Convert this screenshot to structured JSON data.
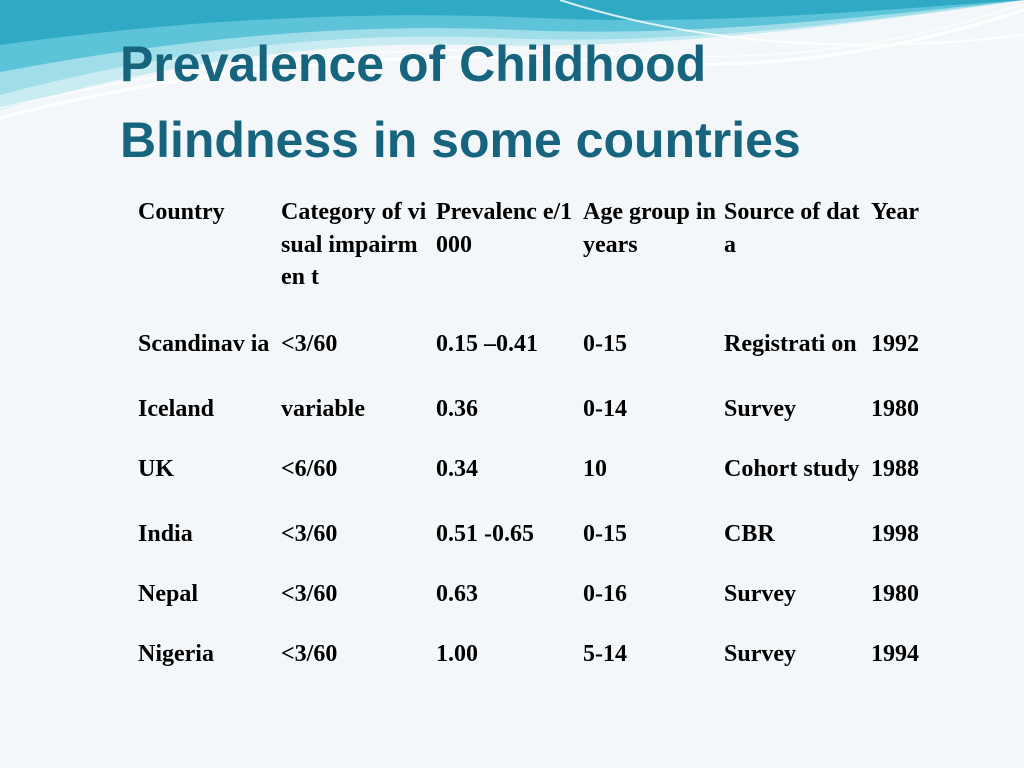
{
  "slide": {
    "title_line1": "Prevalence of Childhood",
    "title_line2": "Blindness in some countries"
  },
  "table": {
    "headers": [
      "Country",
      "Category of visual impairmen t",
      "Prevalenc e/1000",
      "Age group in years",
      "Source of data",
      "Year"
    ],
    "rows": [
      [
        "Scandinav ia",
        "<3/60",
        "0.15 –0.41",
        "0-15",
        "Registrati on",
        "1992"
      ],
      [
        "Iceland",
        "variable",
        "0.36",
        "0-14",
        "Survey",
        "1980"
      ],
      [
        "UK",
        "<6/60",
        "0.34",
        "10",
        "Cohort study",
        "1988"
      ],
      [
        "India",
        "<3/60",
        "0.51 -0.65",
        "0-15",
        "CBR",
        "1998"
      ],
      [
        "Nepal",
        "<3/60",
        "0.63",
        "0-16",
        "Survey",
        "1980"
      ],
      [
        "Nigeria",
        "<3/60",
        "1.00",
        "5-14",
        "Survey",
        "1994"
      ]
    ]
  },
  "colors": {
    "title": "#17647e",
    "wave_dark": "#2fa9c4",
    "wave_light": "#aee3ee"
  }
}
